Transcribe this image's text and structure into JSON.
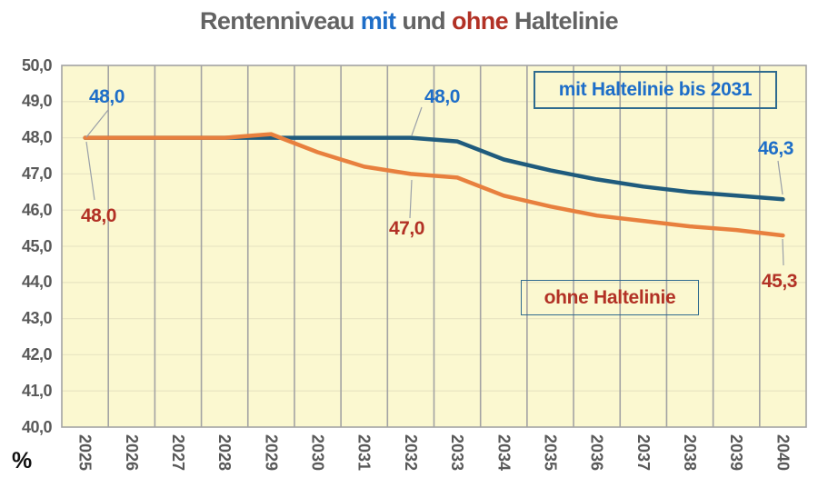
{
  "title": {
    "part1": "Rentenniveau",
    "part2": "mit",
    "part3": "und",
    "part4": "ohne",
    "part5": "Haltelinie"
  },
  "unit_label": "%",
  "colors": {
    "title_gray": "#636363",
    "blue_text": "#1E6EC8",
    "red_text": "#B23125",
    "line_mit": "#1F5B7D",
    "line_ohne": "#E8803E",
    "plot_bg": "#FBF8D0",
    "grid_vertical": "#A3A3A3",
    "grid_horizontal": "#EAE6C3",
    "axis_text": "#595959",
    "legend_border": "#2F6B8F",
    "leader_line": "#9AA0A8",
    "percent_text": "#111111"
  },
  "legend": {
    "mit_label": "mit Haltelinie bis 2031",
    "ohne_label": "ohne Haltelinie"
  },
  "annotations": [
    {
      "text": "48,0",
      "series": "mit",
      "year": "2025"
    },
    {
      "text": "48,0",
      "series": "ohne",
      "year": "2025"
    },
    {
      "text": "48,0",
      "series": "mit",
      "year": "2032"
    },
    {
      "text": "47,0",
      "series": "ohne",
      "year": "2032"
    },
    {
      "text": "46,3",
      "series": "mit",
      "year": "2040"
    },
    {
      "text": "45,3",
      "series": "ohne",
      "year": "2040"
    }
  ],
  "axes": {
    "y_tick_labels": [
      "50,0",
      "49,0",
      "48,0",
      "47,0",
      "46,0",
      "45,0",
      "44,0",
      "43,0",
      "42,0",
      "41,0",
      "40,0"
    ],
    "x_tick_labels": [
      "2025",
      "2026",
      "2027",
      "2028",
      "2029",
      "2030",
      "2031",
      "2032",
      "2033",
      "2034",
      "2035",
      "2036",
      "2037",
      "2038",
      "2039",
      "2040"
    ]
  },
  "chart_data": {
    "type": "line",
    "title": "Rentenniveau mit und ohne Haltelinie",
    "xlabel": "",
    "ylabel": "%",
    "ylim": [
      40,
      50
    ],
    "ytick_step": 1.0,
    "grid": true,
    "legend_position": "inside",
    "categories": [
      "2025",
      "2026",
      "2027",
      "2028",
      "2029",
      "2030",
      "2031",
      "2032",
      "2033",
      "2034",
      "2035",
      "2036",
      "2037",
      "2038",
      "2039",
      "2040"
    ],
    "series": [
      {
        "name": "mit Haltelinie bis 2031",
        "color": "#1F5B7D",
        "values": [
          48.0,
          48.0,
          48.0,
          48.0,
          48.0,
          48.0,
          48.0,
          48.0,
          47.9,
          47.4,
          47.1,
          46.85,
          46.65,
          46.5,
          46.4,
          46.3
        ]
      },
      {
        "name": "ohne Haltelinie",
        "color": "#E8803E",
        "values": [
          48.0,
          48.0,
          48.0,
          48.0,
          48.1,
          47.6,
          47.2,
          47.0,
          46.9,
          46.4,
          46.1,
          45.85,
          45.7,
          45.55,
          45.45,
          45.3
        ]
      }
    ]
  }
}
